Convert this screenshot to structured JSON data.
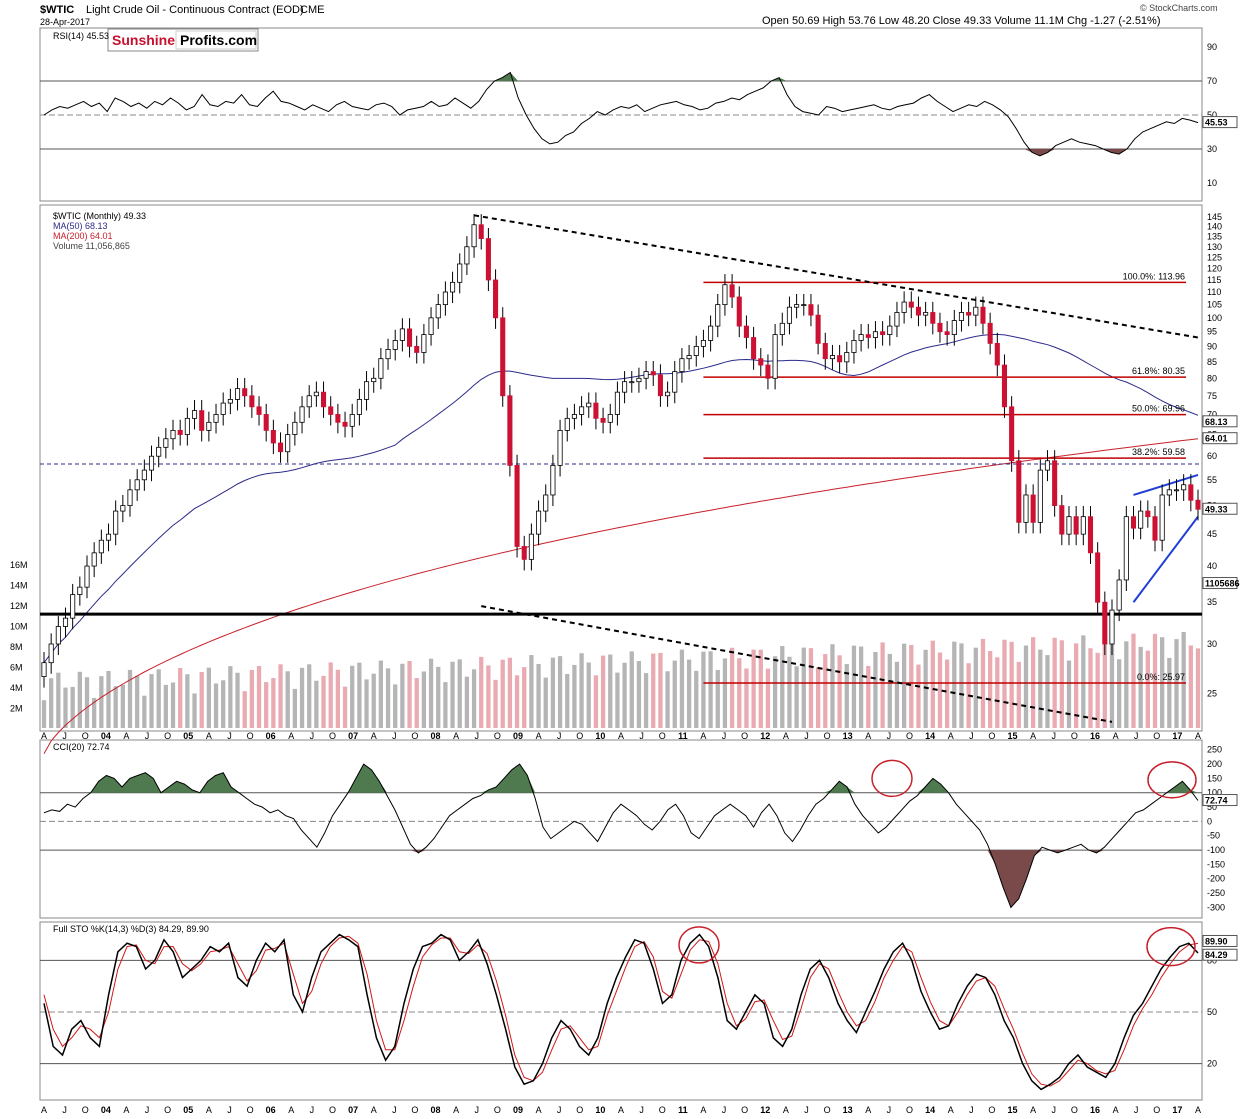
{
  "header": {
    "symbol": "$WTIC",
    "name": "Light Crude Oil - Continuous Contract (EOD)",
    "exchange": "CME",
    "date": "28-Apr-2017",
    "ohlc": "Open 50.69  High 53.76  Low 48.20  Close 49.33  Volume 11.1M  Chg -1.27 (-2.51%)",
    "copyright": "© StockCharts.com",
    "logo_a": "Sunshine",
    "logo_b": "Profits.com"
  },
  "chart_data": [
    {
      "type": "line",
      "panel": "rsi",
      "title": "RSI(14) 45.53",
      "ylim": [
        0,
        100
      ],
      "ticks": [
        90,
        70,
        50,
        30,
        10
      ],
      "last_label": "45.53",
      "values": [
        50,
        53,
        55,
        54,
        56,
        58,
        55,
        57,
        52,
        60,
        58,
        55,
        57,
        54,
        58,
        56,
        60,
        57,
        53,
        55,
        62,
        56,
        55,
        58,
        57,
        62,
        56,
        55,
        60,
        64,
        58,
        57,
        55,
        53,
        56,
        54,
        52,
        56,
        58,
        55,
        54,
        53,
        56,
        57,
        55,
        50,
        53,
        54,
        55,
        58,
        55,
        56,
        60,
        57,
        54,
        58,
        65,
        70,
        72,
        75,
        60,
        50,
        42,
        36,
        33,
        34,
        38,
        40,
        45,
        48,
        52,
        50,
        53,
        55,
        54,
        56,
        52,
        54,
        56,
        57,
        58,
        56,
        55,
        53,
        54,
        57,
        58,
        60,
        59,
        62,
        64,
        66,
        70,
        72,
        62,
        55,
        52,
        51,
        50,
        55,
        54,
        52,
        53,
        54,
        55,
        56,
        54,
        53,
        55,
        56,
        57,
        60,
        62,
        58,
        55,
        52,
        54,
        56,
        55,
        58,
        56,
        53,
        49,
        42,
        34,
        28,
        26,
        28,
        32,
        34,
        36,
        34,
        33,
        32,
        30,
        28,
        27,
        30,
        36,
        40,
        42,
        44,
        46,
        45,
        48,
        47,
        45.53
      ]
    },
    {
      "type": "line",
      "panel": "price",
      "title": "$WTIC (Monthly) 49.33",
      "legend": [
        "MA(50) 68.13",
        "MA(200) 64.01",
        "Volume 11,056,865"
      ],
      "ylim": [
        22,
        150
      ],
      "ticks": [
        145,
        140,
        135,
        130,
        125,
        120,
        115,
        110,
        105,
        100,
        95,
        90,
        85,
        80,
        75,
        70,
        65,
        60,
        55,
        50,
        45,
        40,
        35,
        30,
        25
      ],
      "close": [
        28,
        30,
        32,
        33,
        36,
        37,
        40,
        42,
        44,
        45,
        49,
        50,
        53,
        55,
        57,
        60,
        62,
        64,
        66,
        65,
        69,
        71,
        66,
        68,
        70,
        73,
        74,
        77,
        75,
        72,
        70,
        66,
        63,
        61,
        65,
        68,
        72,
        75,
        76,
        72,
        70,
        68,
        67,
        70,
        74,
        79,
        80,
        86,
        89,
        92,
        96,
        90,
        88,
        94,
        100,
        105,
        110,
        114,
        122,
        130,
        141,
        134,
        115,
        100,
        75,
        58,
        43,
        41,
        45,
        49,
        52,
        58,
        66,
        69,
        70,
        72,
        73,
        69,
        68,
        70,
        76,
        79,
        79,
        80,
        82,
        81,
        75,
        76,
        82,
        86,
        87,
        90,
        92,
        97,
        105,
        113,
        108,
        97,
        93,
        86,
        84,
        80,
        94,
        98,
        104,
        105,
        105,
        101,
        91,
        86,
        87,
        85,
        88,
        92,
        94,
        93,
        95,
        94,
        97,
        102,
        106,
        104,
        101,
        102,
        98,
        95,
        94,
        99,
        102,
        101,
        104,
        98,
        91,
        84,
        72,
        59,
        47,
        52,
        47,
        57,
        59,
        50,
        45,
        48,
        45,
        48,
        42,
        35,
        30,
        34,
        38,
        48,
        46,
        49,
        48,
        44,
        52,
        53,
        53,
        54,
        51,
        49.33
      ],
      "ma50_last": 68.13,
      "ma200_last": 64.01,
      "volume_last_label": "11056865",
      "volume_ticks": [
        "16M",
        "14M",
        "12M",
        "10M",
        "8M",
        "6M",
        "4M",
        "2M"
      ],
      "fib_levels": [
        {
          "label": "100.0%: 113.96",
          "value": 113.96
        },
        {
          "label": "61.8%: 80.35",
          "value": 80.35
        },
        {
          "label": "50.0%: 69.96",
          "value": 69.96
        },
        {
          "label": "38.2%: 59.58",
          "value": 59.58
        },
        {
          "label": "0.0%: 25.97",
          "value": 25.97
        }
      ],
      "support_level": 33.5,
      "dashed_level": 58.3,
      "last_label": "49.33"
    },
    {
      "type": "line",
      "panel": "cci",
      "title": "CCI(20) 72.74",
      "ylim": [
        -330,
        270
      ],
      "ticks": [
        250,
        200,
        150,
        100,
        50,
        0,
        -50,
        -100,
        -150,
        -200,
        -250,
        -300
      ],
      "last_label": "72.74",
      "values": [
        30,
        40,
        35,
        60,
        50,
        80,
        100,
        140,
        160,
        150,
        120,
        150,
        160,
        170,
        150,
        100,
        120,
        140,
        130,
        110,
        100,
        140,
        160,
        170,
        120,
        100,
        80,
        60,
        50,
        30,
        40,
        20,
        10,
        -30,
        -60,
        -90,
        -40,
        20,
        60,
        100,
        150,
        200,
        180,
        140,
        90,
        40,
        -20,
        -80,
        -110,
        -90,
        -60,
        -20,
        20,
        40,
        60,
        80,
        90,
        110,
        120,
        150,
        180,
        200,
        160,
        80,
        -20,
        -60,
        -40,
        -20,
        0,
        -10,
        -40,
        -70,
        -20,
        30,
        60,
        40,
        20,
        -10,
        -30,
        0,
        40,
        60,
        20,
        -40,
        -60,
        -20,
        20,
        40,
        60,
        40,
        20,
        -20,
        30,
        60,
        20,
        -40,
        -70,
        -30,
        20,
        60,
        80,
        110,
        140,
        120,
        60,
        20,
        -10,
        -40,
        -20,
        10,
        40,
        70,
        90,
        120,
        150,
        130,
        100,
        60,
        30,
        0,
        -30,
        -80,
        -150,
        -230,
        -300,
        -270,
        -200,
        -120,
        -90,
        -100,
        -110,
        -100,
        -90,
        -80,
        -100,
        -110,
        -90,
        -60,
        -30,
        0,
        30,
        40,
        60,
        80,
        100,
        120,
        140,
        110,
        72.74
      ]
    },
    {
      "type": "line",
      "panel": "stochastic",
      "title": "Full STO %K(14,3) %D(3) 84.29, 89.90",
      "ylim": [
        0,
        100
      ],
      "ticks": [
        80,
        50,
        20
      ],
      "series": [
        {
          "name": "%K",
          "last_label": "84.29",
          "values": [
            55,
            30,
            25,
            40,
            45,
            35,
            30,
            60,
            85,
            90,
            88,
            75,
            80,
            92,
            85,
            70,
            75,
            80,
            88,
            85,
            90,
            70,
            65,
            80,
            90,
            85,
            92,
            60,
            50,
            70,
            85,
            90,
            95,
            92,
            88,
            60,
            35,
            22,
            30,
            55,
            75,
            88,
            90,
            95,
            92,
            80,
            85,
            92,
            78,
            60,
            40,
            18,
            8,
            10,
            20,
            35,
            45,
            40,
            30,
            25,
            35,
            55,
            70,
            82,
            92,
            90,
            75,
            55,
            60,
            80,
            90,
            95,
            88,
            70,
            45,
            40,
            50,
            60,
            55,
            35,
            30,
            40,
            60,
            75,
            80,
            70,
            55,
            45,
            38,
            50,
            62,
            75,
            85,
            90,
            80,
            62,
            50,
            40,
            42,
            55,
            65,
            72,
            70,
            60,
            45,
            35,
            20,
            10,
            5,
            8,
            12,
            20,
            25,
            18,
            15,
            12,
            20,
            35,
            48,
            55,
            65,
            75,
            82,
            88,
            90,
            84.29
          ]
        },
        {
          "name": "%D",
          "last_label": "89.90",
          "values": [
            60,
            40,
            30,
            35,
            42,
            40,
            35,
            50,
            75,
            88,
            89,
            80,
            78,
            88,
            88,
            78,
            74,
            78,
            85,
            86,
            88,
            78,
            68,
            74,
            86,
            87,
            90,
            72,
            55,
            62,
            78,
            88,
            93,
            94,
            90,
            72,
            45,
            28,
            28,
            45,
            65,
            82,
            89,
            93,
            93,
            85,
            84,
            89,
            84,
            68,
            48,
            25,
            12,
            10,
            15,
            28,
            40,
            42,
            35,
            28,
            30,
            48,
            62,
            76,
            88,
            91,
            82,
            62,
            58,
            72,
            86,
            92,
            91,
            78,
            55,
            42,
            46,
            56,
            57,
            45,
            34,
            36,
            52,
            70,
            78,
            75,
            62,
            50,
            42,
            45,
            56,
            70,
            80,
            88,
            85,
            70,
            56,
            45,
            42,
            50,
            60,
            68,
            70,
            65,
            52,
            40,
            26,
            14,
            8,
            7,
            10,
            16,
            22,
            20,
            16,
            14,
            16,
            28,
            42,
            52,
            60,
            70,
            78,
            85,
            89,
            89.9
          ]
        }
      ]
    }
  ],
  "x_axis": {
    "labels": [
      "A",
      "J",
      "O",
      "04",
      "A",
      "J",
      "O",
      "05",
      "A",
      "J",
      "O",
      "06",
      "A",
      "J",
      "O",
      "07",
      "A",
      "J",
      "O",
      "08",
      "A",
      "J",
      "O",
      "09",
      "A",
      "J",
      "O",
      "10",
      "A",
      "J",
      "O",
      "11",
      "A",
      "J",
      "O",
      "12",
      "A",
      "J",
      "O",
      "13",
      "A",
      "J",
      "O",
      "14",
      "A",
      "J",
      "O",
      "15",
      "A",
      "J",
      "O",
      "16",
      "A",
      "J",
      "O",
      "17",
      "A"
    ]
  },
  "colors": {
    "up": "#ffffff",
    "down": "#cc1133",
    "ma50": "#2b2b8a",
    "ma200": "#c8202a",
    "fib": "#c00000",
    "channel": "#1f3fd6",
    "ob_fill": "#4f7a4f",
    "os_fill": "#7a4a4a",
    "highlight": "#c8202a"
  }
}
